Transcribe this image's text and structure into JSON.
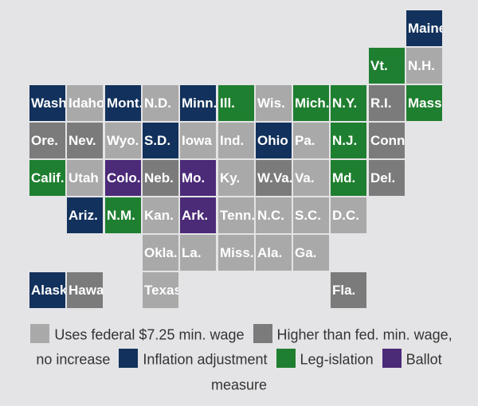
{
  "legend": {
    "items": [
      {
        "key": "fed",
        "text": "Uses federal $7.25 min. wage",
        "color": "#a9a9a9"
      },
      {
        "key": "high",
        "text": "Higher than fed. min. wage, no increase",
        "color": "#7b7b7b"
      },
      {
        "key": "infl",
        "text": "Inflation adjustment",
        "color": "#12315c"
      },
      {
        "key": "leg",
        "text": "Leg-islation",
        "color": "#1f7f30"
      },
      {
        "key": "ballot",
        "text": "Ballot measure",
        "color": "#4b2a78"
      }
    ]
  },
  "states": [
    {
      "label": "Maine",
      "cat": "infl",
      "row": 0,
      "col": 10
    },
    {
      "label": "Vt.",
      "cat": "leg",
      "row": 1,
      "col": 9
    },
    {
      "label": "N.H.",
      "cat": "fed",
      "row": 1,
      "col": 10
    },
    {
      "label": "Wash.",
      "cat": "infl",
      "row": 2,
      "col": 0
    },
    {
      "label": "Idaho",
      "cat": "fed",
      "row": 2,
      "col": 1
    },
    {
      "label": "Mont.",
      "cat": "infl",
      "row": 2,
      "col": 2
    },
    {
      "label": "N.D.",
      "cat": "fed",
      "row": 2,
      "col": 3
    },
    {
      "label": "Minn.",
      "cat": "infl",
      "row": 2,
      "col": 4
    },
    {
      "label": "Ill.",
      "cat": "leg",
      "row": 2,
      "col": 5
    },
    {
      "label": "Wis.",
      "cat": "fed",
      "row": 2,
      "col": 6
    },
    {
      "label": "Mich.",
      "cat": "leg",
      "row": 2,
      "col": 7
    },
    {
      "label": "N.Y.",
      "cat": "leg",
      "row": 2,
      "col": 8
    },
    {
      "label": "R.I.",
      "cat": "high",
      "row": 2,
      "col": 9
    },
    {
      "label": "Mass.",
      "cat": "leg",
      "row": 2,
      "col": 10
    },
    {
      "label": "Ore.",
      "cat": "high",
      "row": 3,
      "col": 0
    },
    {
      "label": "Nev.",
      "cat": "high",
      "row": 3,
      "col": 1
    },
    {
      "label": "Wyo.",
      "cat": "fed",
      "row": 3,
      "col": 2
    },
    {
      "label": "S.D.",
      "cat": "infl",
      "row": 3,
      "col": 3
    },
    {
      "label": "Iowa",
      "cat": "fed",
      "row": 3,
      "col": 4
    },
    {
      "label": "Ind.",
      "cat": "fed",
      "row": 3,
      "col": 5
    },
    {
      "label": "Ohio",
      "cat": "infl",
      "row": 3,
      "col": 6
    },
    {
      "label": "Pa.",
      "cat": "fed",
      "row": 3,
      "col": 7
    },
    {
      "label": "N.J.",
      "cat": "leg",
      "row": 3,
      "col": 8
    },
    {
      "label": "Conn.",
      "cat": "high",
      "row": 3,
      "col": 9
    },
    {
      "label": "Calif.",
      "cat": "leg",
      "row": 4,
      "col": 0
    },
    {
      "label": "Utah",
      "cat": "fed",
      "row": 4,
      "col": 1
    },
    {
      "label": "Colo.",
      "cat": "ballot",
      "row": 4,
      "col": 2
    },
    {
      "label": "Neb.",
      "cat": "high",
      "row": 4,
      "col": 3
    },
    {
      "label": "Mo.",
      "cat": "ballot",
      "row": 4,
      "col": 4
    },
    {
      "label": "Ky.",
      "cat": "fed",
      "row": 4,
      "col": 5
    },
    {
      "label": "W.Va.",
      "cat": "high",
      "row": 4,
      "col": 6
    },
    {
      "label": "Va.",
      "cat": "fed",
      "row": 4,
      "col": 7
    },
    {
      "label": "Md.",
      "cat": "leg",
      "row": 4,
      "col": 8
    },
    {
      "label": "Del.",
      "cat": "high",
      "row": 4,
      "col": 9
    },
    {
      "label": "Ariz.",
      "cat": "infl",
      "row": 5,
      "col": 1
    },
    {
      "label": "N.M.",
      "cat": "leg",
      "row": 5,
      "col": 2
    },
    {
      "label": "Kan.",
      "cat": "fed",
      "row": 5,
      "col": 3
    },
    {
      "label": "Ark.",
      "cat": "ballot",
      "row": 5,
      "col": 4
    },
    {
      "label": "Tenn.",
      "cat": "fed",
      "row": 5,
      "col": 5
    },
    {
      "label": "N.C.",
      "cat": "fed",
      "row": 5,
      "col": 6
    },
    {
      "label": "S.C.",
      "cat": "fed",
      "row": 5,
      "col": 7
    },
    {
      "label": "D.C.",
      "cat": "fed",
      "row": 5,
      "col": 8
    },
    {
      "label": "Okla.",
      "cat": "fed",
      "row": 6,
      "col": 3
    },
    {
      "label": "La.",
      "cat": "fed",
      "row": 6,
      "col": 4
    },
    {
      "label": "Miss.",
      "cat": "fed",
      "row": 6,
      "col": 5
    },
    {
      "label": "Ala.",
      "cat": "fed",
      "row": 6,
      "col": 6
    },
    {
      "label": "Ga.",
      "cat": "fed",
      "row": 6,
      "col": 7
    },
    {
      "label": "Alaska",
      "cat": "infl",
      "row": 7,
      "col": 0
    },
    {
      "label": "Hawaii",
      "cat": "high",
      "row": 7,
      "col": 1
    },
    {
      "label": "Texas",
      "cat": "fed",
      "row": 7,
      "col": 3
    },
    {
      "label": "Fla.",
      "cat": "high",
      "row": 7,
      "col": 8
    }
  ]
}
